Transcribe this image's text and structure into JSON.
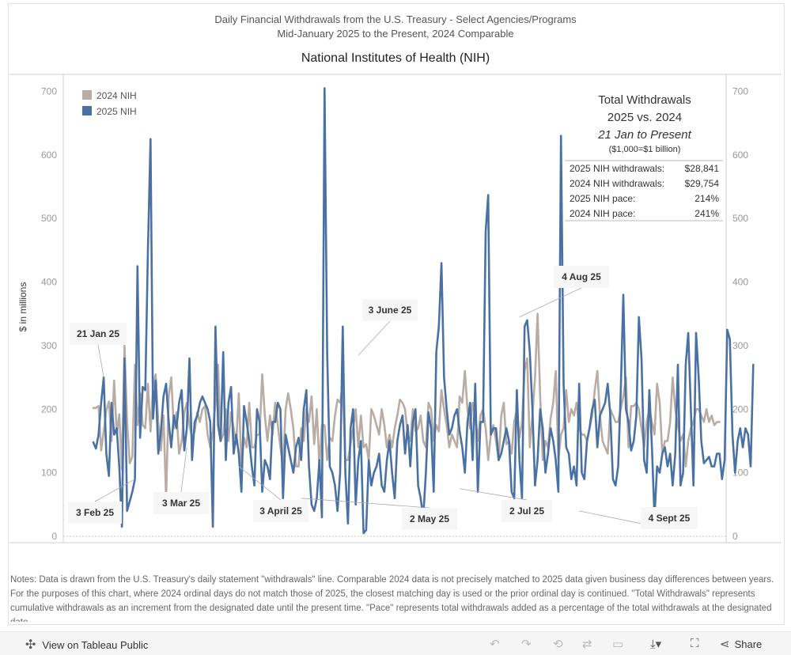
{
  "header": {
    "line1": "Daily Financial Withdrawals from the U.S. Treasury - Select Agencies/Programs",
    "line2": "Mid-January 2025 to the Present, 2024 Comparable",
    "subtitle": "National Institutes of Health (NIH)"
  },
  "summary": {
    "title1": "Total Withdrawals",
    "title2": "2025 vs. 2024",
    "title3": "21 Jan to Present",
    "note": "($1,000=$1 billion)",
    "rows": [
      {
        "label": "2025 NIH withdrawals:",
        "value": "$28,841"
      },
      {
        "label": "2024 NIH withdrawals:",
        "value": "$29,754"
      },
      {
        "label": "2025 NIH pace:",
        "value": "214%"
      },
      {
        "label": "2024 NIH pace:",
        "value": "241%"
      }
    ]
  },
  "notes": "Notes:  Data is drawn from the U.S. Treasury's daily statement \"withdrawals\" line. Comparable 2024 data is not precisely matched to 2025 data given business day differences between years. For the purposes of this chart, where 2024 ordinal days do not match those of 2025, the closest matching day is used or the prior ordinal day is continued. \"Total Withdrawals\" represents cumulative withdrawals as an increment from the designated date until the present time. \"Pace\" represents total withdrawals added as a percentage of the total withdrawals at the designated date.",
  "toolbar": {
    "view_label": "View on Tableau Public",
    "share_label": "Share"
  },
  "colors": {
    "series_2024": "#b8aca4",
    "series_2025": "#4a71a4",
    "gridline": "#dddddd"
  },
  "chart_data": {
    "type": "line",
    "title": "National Institutes of Health (NIH)",
    "ylabel": "$ in millions",
    "ylim": [
      0,
      720
    ],
    "yticks": [
      0,
      100,
      200,
      300,
      400,
      500,
      600,
      700
    ],
    "xrange": [
      0,
      232
    ],
    "series": [
      {
        "name": "2024 NIH",
        "color": "#b8aca4",
        "values": [
          202,
          202,
          205,
          135,
          165,
          198,
          212,
          150,
          245,
          160,
          192,
          105,
          300,
          180,
          115,
          125,
          270,
          175,
          225,
          175,
          170,
          240,
          165,
          235,
          255,
          180,
          135,
          190,
          60,
          220,
          250,
          170,
          195,
          130,
          150,
          195,
          210,
          175,
          155,
          165,
          195,
          180,
          200,
          205,
          160,
          140,
          165,
          210,
          270,
          150,
          160,
          200,
          150,
          195,
          170,
          145,
          225,
          110,
          155,
          140,
          210,
          140,
          140,
          160,
          160,
          255,
          190,
          150,
          190,
          160,
          210,
          175,
          140,
          110,
          200,
          225,
          200,
          170,
          110,
          110,
          170,
          150,
          200,
          180,
          220,
          145,
          200,
          110,
          175,
          175,
          120,
          155,
          150,
          190,
          215,
          210,
          240,
          120,
          120,
          145,
          170,
          200,
          140,
          190,
          140,
          145,
          120,
          200,
          190,
          175,
          160,
          200,
          175,
          140,
          160,
          140,
          170,
          190,
          215,
          210,
          200,
          160,
          150,
          200,
          165,
          170,
          190,
          150,
          140,
          210,
          200,
          150,
          175,
          165,
          230,
          200,
          175,
          140,
          160,
          150,
          140,
          220,
          210,
          260,
          200,
          170,
          210,
          190,
          150,
          190,
          200,
          170,
          120,
          160,
          175,
          150,
          120,
          190,
          210,
          145,
          150,
          130,
          180,
          200,
          155,
          180,
          260,
          280,
          140,
          190,
          250,
          350,
          220,
          120,
          150,
          140,
          185,
          210,
          260,
          120,
          160,
          170,
          230,
          180,
          200,
          190,
          210,
          170,
          160,
          160,
          150,
          170,
          190,
          230,
          260,
          190,
          150,
          140,
          130,
          200,
          190,
          180,
          180,
          200,
          220,
          250,
          140,
          205,
          205,
          210,
          200,
          170,
          140,
          180,
          200,
          180,
          160,
          240,
          210,
          130,
          150,
          150,
          180,
          250,
          200,
          175,
          150,
          160,
          110,
          150,
          170,
          180,
          200,
          200,
          190,
          180,
          200,
          180,
          190,
          175,
          180,
          180
        ]
      },
      {
        "name": "2025 NIH",
        "color": "#4a71a4",
        "values": [
          148,
          138,
          160,
          210,
          250,
          130,
          95,
          210,
          160,
          170,
          110,
          15,
          280,
          40,
          55,
          70,
          90,
          425,
          155,
          235,
          230,
          450,
          625,
          185,
          245,
          130,
          165,
          220,
          240,
          180,
          140,
          190,
          170,
          210,
          230,
          135,
          170,
          280,
          120,
          180,
          190,
          210,
          220,
          210,
          200,
          180,
          15,
          330,
          175,
          150,
          290,
          120,
          210,
          235,
          130,
          160,
          130,
          70,
          205,
          180,
          150,
          110,
          80,
          200,
          180,
          70,
          120,
          110,
          90,
          180,
          180,
          210,
          200,
          60,
          160,
          140,
          120,
          100,
          140,
          155,
          120,
          200,
          230,
          110,
          50,
          40,
          60,
          120,
          30,
          705,
          290,
          110,
          100,
          80,
          40,
          100,
          330,
          100,
          20,
          170,
          200,
          50,
          120,
          150,
          5,
          10,
          120,
          80,
          100,
          110,
          130,
          80,
          70,
          120,
          150,
          100,
          60,
          150,
          175,
          190,
          130,
          175,
          110,
          180,
          200,
          80,
          60,
          30,
          100,
          195,
          170,
          70,
          290,
          330,
          430,
          250,
          200,
          160,
          170,
          190,
          200,
          165,
          140,
          100,
          180,
          210,
          120,
          240,
          70,
          180,
          180,
          480,
          537,
          160,
          170,
          170,
          120,
          130,
          150,
          170,
          150,
          70,
          60,
          230,
          120,
          60,
          330,
          340,
          290,
          200,
          80,
          120,
          200,
          170,
          100,
          130,
          170,
          150,
          120,
          70,
          630,
          240,
          140,
          130,
          90,
          110,
          80,
          240,
          100,
          90,
          150,
          170,
          200,
          215,
          140,
          190,
          200,
          210,
          240,
          190,
          90,
          80,
          110,
          230,
          380,
          200,
          180,
          135,
          150,
          190,
          345,
          280,
          120,
          100,
          230,
          140,
          30,
          110,
          100,
          130,
          140,
          110,
          130,
          80,
          130,
          270,
          80,
          100,
          270,
          320,
          200,
          80,
          320,
          250,
          150,
          115,
          120,
          125,
          110,
          110,
          130,
          130,
          90,
          120,
          325,
          310,
          160,
          100,
          150,
          170,
          140,
          170,
          160,
          110,
          270
        ]
      }
    ],
    "annotations": [
      {
        "label": "21 Jan 25",
        "x": 4,
        "y": 250
      },
      {
        "label": "3 Feb 25",
        "x": 16,
        "y": 90
      },
      {
        "label": "3 Mar 25",
        "x": 36,
        "y": 140
      },
      {
        "label": "3 April 25",
        "x": 56,
        "y": 110
      },
      {
        "label": "2 May 25",
        "x": 80,
        "y": 60
      },
      {
        "label": "3 June 25",
        "x": 102,
        "y": 285
      },
      {
        "label": "2 Jul 25",
        "x": 141,
        "y": 75
      },
      {
        "label": "4 Aug 25",
        "x": 164,
        "y": 345
      },
      {
        "label": "4 Sept 25",
        "x": 187,
        "y": 40
      }
    ]
  }
}
